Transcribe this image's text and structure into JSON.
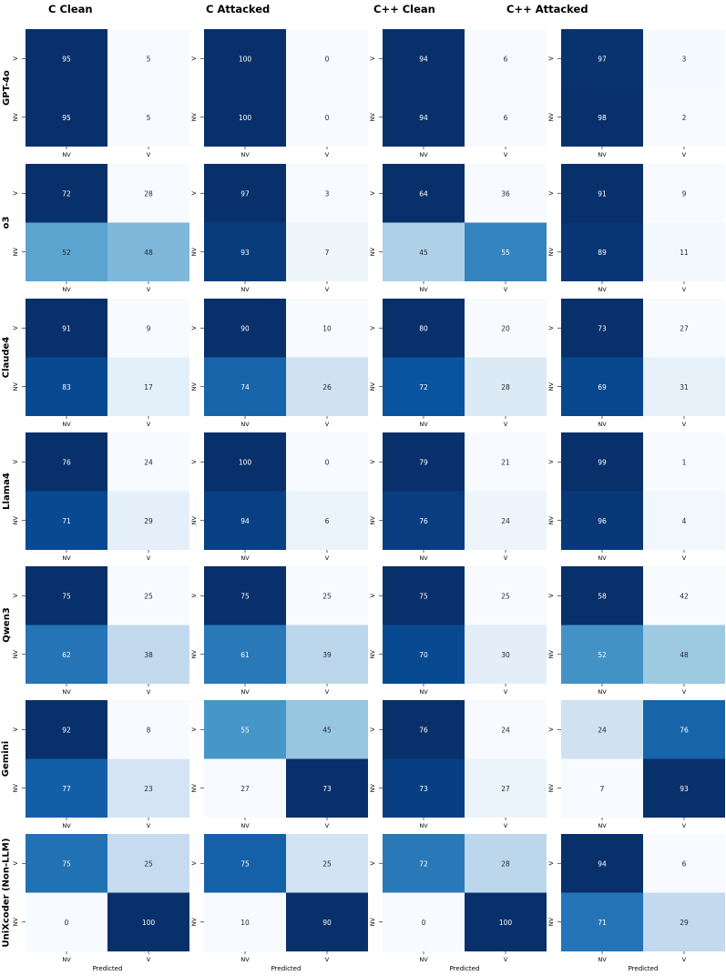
{
  "chart_data": {
    "type": "heatmap",
    "column_titles": [
      "C Clean",
      "C Attacked",
      "C++ Clean",
      "C++ Attacked"
    ],
    "row_titles": [
      "GPT-4o",
      "o3",
      "Claude4",
      "Llama4",
      "Qwen3",
      "Gemini",
      "UniXcoder (Non-LLM)"
    ],
    "true_labels": [
      "V",
      "NV"
    ],
    "pred_labels": [
      "NV",
      "V"
    ],
    "xlabel": "Predicted",
    "colormap": "Blues",
    "value_range": [
      0,
      100
    ],
    "colors": {
      "low": "#f7fbff",
      "high": "#08306b"
    },
    "matrices": [
      [
        [
          [
            95,
            5
          ],
          [
            95,
            5
          ]
        ],
        [
          [
            100,
            0
          ],
          [
            100,
            0
          ]
        ],
        [
          [
            94,
            6
          ],
          [
            94,
            6
          ]
        ],
        [
          [
            97,
            3
          ],
          [
            98,
            2
          ]
        ]
      ],
      [
        [
          [
            72,
            28
          ],
          [
            52,
            48
          ]
        ],
        [
          [
            97,
            3
          ],
          [
            93,
            7
          ]
        ],
        [
          [
            64,
            36
          ],
          [
            45,
            55
          ]
        ],
        [
          [
            91,
            9
          ],
          [
            89,
            11
          ]
        ]
      ],
      [
        [
          [
            91,
            9
          ],
          [
            83,
            17
          ]
        ],
        [
          [
            90,
            10
          ],
          [
            74,
            26
          ]
        ],
        [
          [
            80,
            20
          ],
          [
            72,
            28
          ]
        ],
        [
          [
            73,
            27
          ],
          [
            69,
            31
          ]
        ]
      ],
      [
        [
          [
            76,
            24
          ],
          [
            71,
            29
          ]
        ],
        [
          [
            100,
            0
          ],
          [
            94,
            6
          ]
        ],
        [
          [
            79,
            21
          ],
          [
            76,
            24
          ]
        ],
        [
          [
            99,
            1
          ],
          [
            96,
            4
          ]
        ]
      ],
      [
        [
          [
            75,
            25
          ],
          [
            62,
            38
          ]
        ],
        [
          [
            75,
            25
          ],
          [
            61,
            39
          ]
        ],
        [
          [
            75,
            25
          ],
          [
            70,
            30
          ]
        ],
        [
          [
            58,
            42
          ],
          [
            52,
            48
          ]
        ]
      ],
      [
        [
          [
            92,
            8
          ],
          [
            77,
            23
          ]
        ],
        [
          [
            55,
            45
          ],
          [
            27,
            73
          ]
        ],
        [
          [
            76,
            24
          ],
          [
            73,
            27
          ]
        ],
        [
          [
            24,
            76
          ],
          [
            7,
            93
          ]
        ]
      ],
      [
        [
          [
            75,
            25
          ],
          [
            0,
            100
          ]
        ],
        [
          [
            75,
            25
          ],
          [
            10,
            90
          ]
        ],
        [
          [
            72,
            28
          ],
          [
            0,
            100
          ]
        ],
        [
          [
            94,
            6
          ],
          [
            71,
            29
          ]
        ]
      ]
    ]
  }
}
